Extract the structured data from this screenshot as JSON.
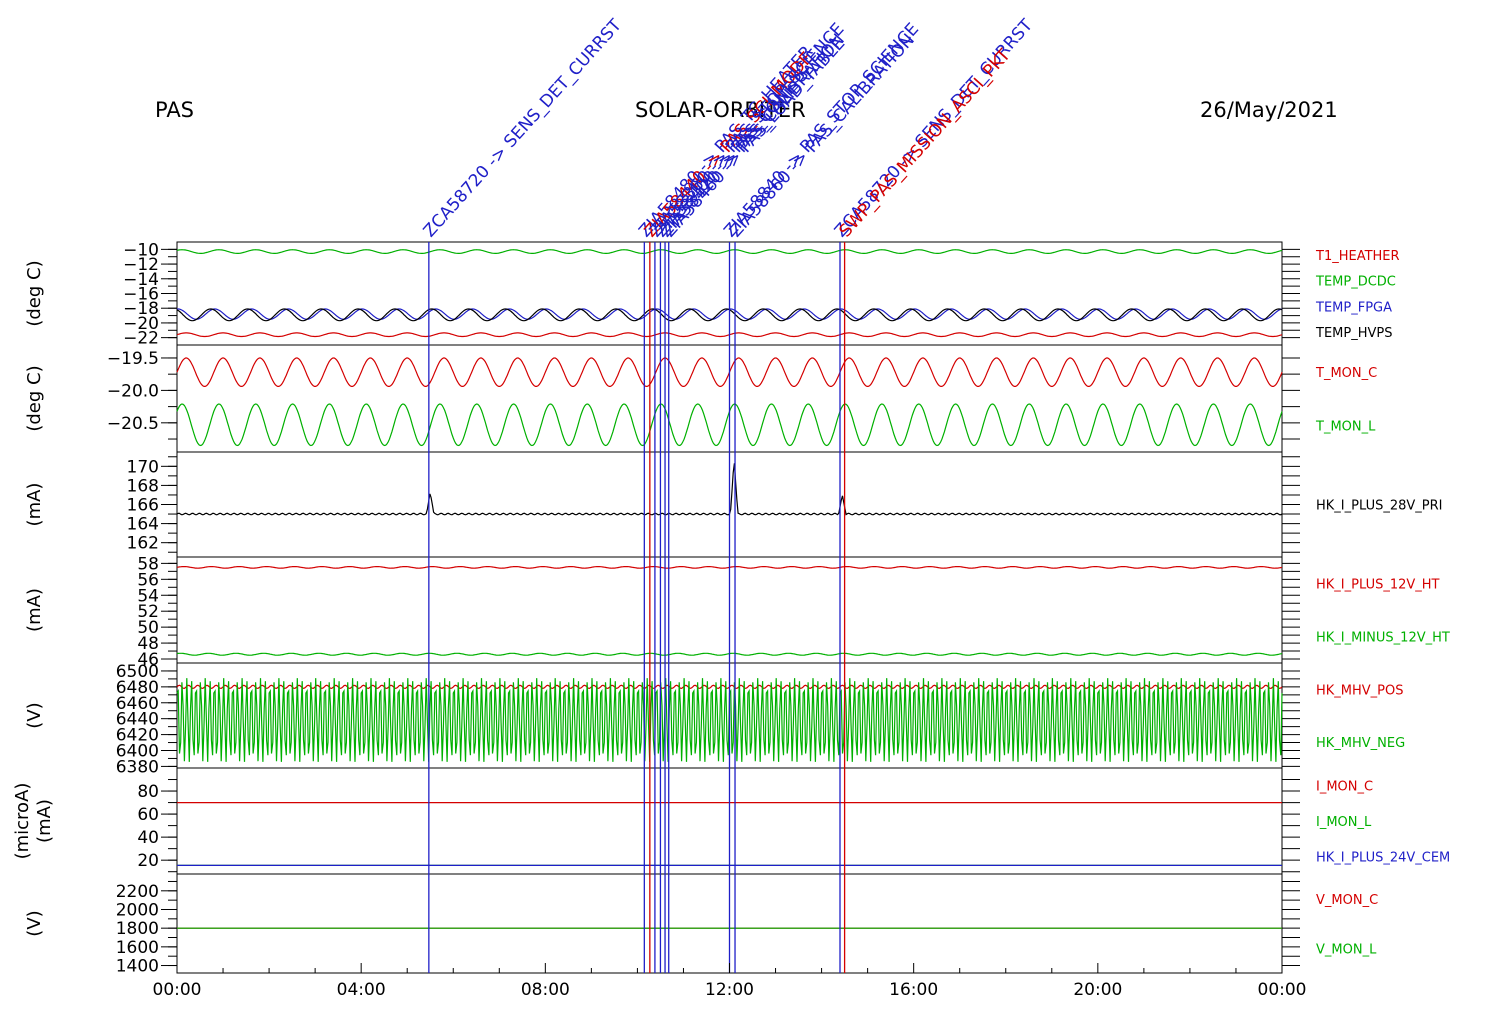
{
  "header": {
    "instrument": "PAS",
    "mission": "SOLAR-ORBITER",
    "date": "26/May/2021"
  },
  "colors": {
    "red": "#d40000",
    "green": "#00b000",
    "blue": "#1f1fc8",
    "black": "#000000"
  },
  "chart_data": {
    "type": "line",
    "x_axis": {
      "ticks": [
        "00:00",
        "04:00",
        "08:00",
        "12:00",
        "16:00",
        "20:00",
        "00:00"
      ],
      "range_hours": [
        0,
        24
      ]
    },
    "events": [
      {
        "hour": 5.47,
        "color": "blue",
        "label": "ZCA58720 -> SENS_DET_CURRST"
      },
      {
        "hour": 10.15,
        "color": "blue",
        "label": "ZIA58480 -> PAS_TC_HEATER"
      },
      {
        "hour": 10.27,
        "color": "red",
        "label": "ZIA58440 -> PAS_SCI_MODE"
      },
      {
        "hour": 10.38,
        "color": "blue",
        "label": "ZIA58360 -> PAS_STOP_SCIENCE"
      },
      {
        "hour": 10.5,
        "color": "blue",
        "label": "ZIA58400 -> PAS_CONFIG"
      },
      {
        "hour": 10.6,
        "color": "blue",
        "label": "ZIA58420 -> PAS_CALIBRATION"
      },
      {
        "hour": 10.68,
        "color": "blue",
        "label": "ZIA58460 -> PAS_LOAD_TABLE"
      },
      {
        "hour": 12.0,
        "color": "blue",
        "label": "ZIA58840 -> PAS_STOP_SCIENCE"
      },
      {
        "hour": 12.12,
        "color": "blue",
        "label": "ZIA58860 -> PAS_CALIBRATION"
      },
      {
        "hour": 14.4,
        "color": "blue",
        "label": "ZCA58720 -> SENS_DET_CURRST"
      },
      {
        "hour": 14.5,
        "color": "red",
        "label": "SWP_PAS_MISSION_ASCI_PKT"
      }
    ],
    "panels": [
      {
        "ylabel": "(deg C)",
        "yrange": [
          -23,
          -9
        ],
        "ticks": [
          -10,
          -12,
          -14,
          -16,
          -18,
          -20,
          -22
        ],
        "tick_labels": [
          "−10",
          "−12",
          "−14",
          "−16",
          "−18",
          "−20",
          "−22"
        ],
        "series": [
          {
            "name": "T1_HEATHER",
            "color": "red",
            "mean": -21.6,
            "amp": 0.25,
            "period_h": 0.8
          },
          {
            "name": "TEMP_DCDC",
            "color": "green",
            "mean": -10.3,
            "amp": 0.25,
            "period_h": 0.8
          },
          {
            "name": "TEMP_FPGA",
            "color": "blue",
            "mean": -18.8,
            "amp": 0.7,
            "period_h": 0.8
          },
          {
            "name": "TEMP_HVPS",
            "color": "black",
            "mean": -18.9,
            "amp": 0.8,
            "period_h": 0.8
          }
        ]
      },
      {
        "ylabel": "(deg C)",
        "yrange": [
          -20.95,
          -19.3
        ],
        "ticks": [
          -19.5,
          -20.0,
          -20.5
        ],
        "tick_labels": [
          "−19.5",
          "−20.0",
          "−20.5"
        ],
        "series": [
          {
            "name": "T_MON_C",
            "color": "red",
            "mean": -19.72,
            "amp": 0.22,
            "period_h": 0.8
          },
          {
            "name": "T_MON_L",
            "color": "green",
            "mean": -20.53,
            "amp": 0.32,
            "period_h": 0.8
          }
        ]
      },
      {
        "ylabel": "(mA)",
        "yrange": [
          160.5,
          171.5
        ],
        "ticks": [
          170,
          168,
          166,
          164,
          162
        ],
        "tick_labels": [
          "170",
          "168",
          "166",
          "164",
          "162"
        ],
        "series": [
          {
            "name": "HK_I_PLUS_28V_PRI",
            "color": "black",
            "mean": 165.0,
            "amp": 0.08,
            "period_h": 0.15,
            "spikes": [
              {
                "hour": 5.5,
                "value": 167.3
              },
              {
                "hour": 12.1,
                "value": 170.8
              },
              {
                "hour": 14.45,
                "value": 167.0
              }
            ]
          }
        ]
      },
      {
        "ylabel": "(mA)",
        "yrange": [
          45.5,
          58.8
        ],
        "ticks": [
          58,
          56,
          54,
          52,
          50,
          48,
          46
        ],
        "tick_labels": [
          "58",
          "56",
          "54",
          "52",
          "50",
          "48",
          "46"
        ],
        "series": [
          {
            "name": "HK_I_PLUS_12V_HT",
            "color": "red",
            "mean": 57.5,
            "amp": 0.1,
            "period_h": 0.6
          },
          {
            "name": "HK_I_MINUS_12V_HT",
            "color": "green",
            "mean": 46.6,
            "amp": 0.12,
            "period_h": 0.6
          }
        ]
      },
      {
        "ylabel": "(V)",
        "yrange": [
          6378,
          6510
        ],
        "ticks": [
          6500,
          6480,
          6460,
          6440,
          6420,
          6400,
          6380
        ],
        "tick_labels": [
          "6500",
          "6480",
          "6460",
          "6440",
          "6420",
          "6400",
          "6380"
        ],
        "series": [
          {
            "name": "HK_MHV_POS",
            "color": "red",
            "mean": 6480,
            "amp": 2,
            "period_h": 0.2
          },
          {
            "name": "HK_MHV_NEG",
            "color": "green",
            "mean": 6438,
            "amp": 53,
            "period_h": 0.1
          }
        ]
      },
      {
        "ylabel": "(microA)",
        "ylabel2": "(mA)",
        "yrange": [
          8,
          100
        ],
        "ticks": [
          80,
          60,
          40,
          20
        ],
        "tick_labels": [
          "80",
          "60",
          "40",
          "20"
        ],
        "series": [
          {
            "name": "I_MON_C",
            "color": "red",
            "mean": 70,
            "amp": 0,
            "period_h": 1
          },
          {
            "name": "I_MON_L",
            "color": "green",
            "mean": 15.5,
            "amp": 0,
            "period_h": 1
          },
          {
            "name": "HK_I_PLUS_24V_CEM",
            "color": "blue",
            "mean": 15.5,
            "amp": 0,
            "period_h": 1
          }
        ]
      },
      {
        "ylabel": "(V)",
        "yrange": [
          1320,
          2380
        ],
        "ticks": [
          2200,
          2000,
          1800,
          1600,
          1400
        ],
        "tick_labels": [
          "2200",
          "2000",
          "1800",
          "1600",
          "1400"
        ],
        "series": [
          {
            "name": "V_MON_C",
            "color": "red",
            "mean": 1800,
            "amp": 0,
            "period_h": 1
          },
          {
            "name": "V_MON_L",
            "color": "green",
            "mean": 1800,
            "amp": 0,
            "period_h": 1
          }
        ]
      }
    ]
  }
}
